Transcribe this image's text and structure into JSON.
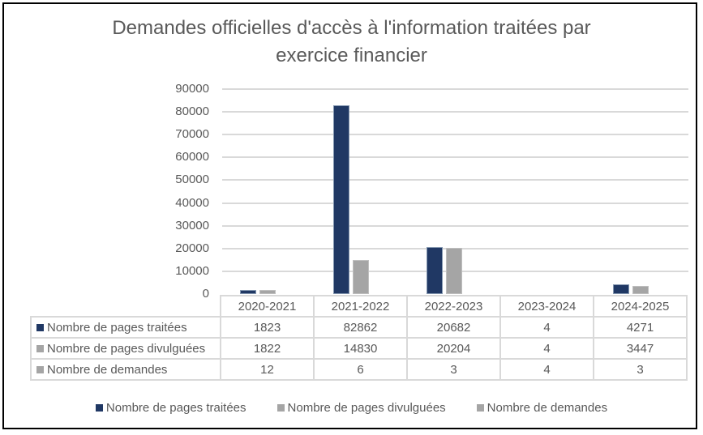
{
  "title": "Demandes officielles d'accès à l'information traitées par exercice financier",
  "title_lines": [
    "Demandes officielles d'accès à l'information traitées par",
    "exercice financier"
  ],
  "y_axis": {
    "ticks": [
      "90000",
      "80000",
      "70000",
      "60000",
      "50000",
      "40000",
      "30000",
      "20000",
      "10000",
      "0"
    ]
  },
  "table": {
    "columns": [
      "2020-2021",
      "2021-2022",
      "2022-2023",
      "2023-2024",
      "2024-2025"
    ],
    "rows": [
      {
        "label": "Nombre de pages traitées",
        "color": "#203864",
        "values": [
          "1823",
          "82862",
          "20682",
          "4",
          "4271"
        ]
      },
      {
        "label": "Nombre de pages divulguées",
        "color": "#a5a5a5",
        "values": [
          "1822",
          "14830",
          "20204",
          "4",
          "3447"
        ]
      },
      {
        "label": "Nombre de demandes",
        "color": "#a5a5a5",
        "values": [
          "12",
          "6",
          "3",
          "4",
          "3"
        ]
      }
    ]
  },
  "legend": [
    {
      "label": "Nombre de pages traitées",
      "color": "#203864"
    },
    {
      "label": "Nombre de pages divulguées",
      "color": "#a5a5a5"
    },
    {
      "label": "Nombre de demandes",
      "color": "#a5a5a5"
    }
  ],
  "chart_data": {
    "type": "bar",
    "title": "Demandes officielles d'accès à l'information traitées par exercice financier",
    "xlabel": "",
    "ylabel": "",
    "ylim": [
      0,
      90000
    ],
    "grid": true,
    "legend_position": "bottom",
    "data_table": true,
    "categories": [
      "2020-2021",
      "2021-2022",
      "2022-2023",
      "2023-2024",
      "2024-2025"
    ],
    "series": [
      {
        "name": "Nombre de pages traitées",
        "color": "#203864",
        "values": [
          1823,
          82862,
          20682,
          4,
          4271
        ]
      },
      {
        "name": "Nombre de pages divulguées",
        "color": "#a5a5a5",
        "values": [
          1822,
          14830,
          20204,
          4,
          3447
        ]
      },
      {
        "name": "Nombre de demandes",
        "color": "#a5a5a5",
        "values": [
          12,
          6,
          3,
          4,
          3
        ]
      }
    ]
  }
}
